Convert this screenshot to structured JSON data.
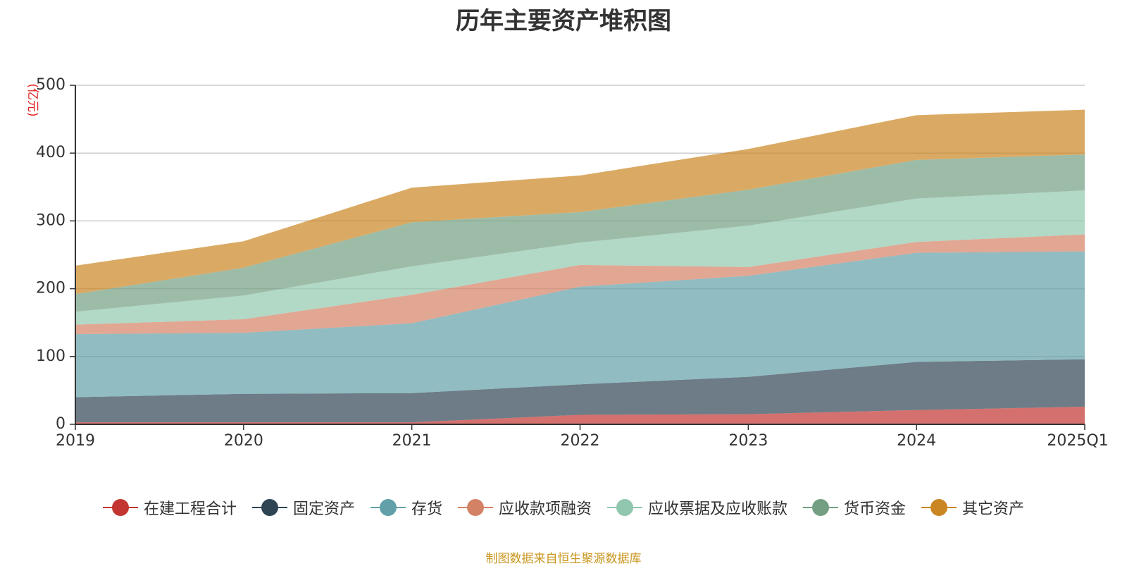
{
  "chart_data": {
    "type": "area",
    "stacked": true,
    "title": "历年主要资产堆积图",
    "unit_label": "(亿元)",
    "categories": [
      "2019",
      "2020",
      "2021",
      "2022",
      "2023",
      "2024",
      "2025Q1"
    ],
    "ylim": [
      0,
      500
    ],
    "yticks": [
      0,
      100,
      200,
      300,
      400,
      500
    ],
    "grid": true,
    "legend_position": "bottom",
    "series": [
      {
        "name": "在建工程合计",
        "color": "#c23531",
        "values": [
          3,
          3,
          3,
          14,
          15,
          21,
          26
        ]
      },
      {
        "name": "固定资产",
        "color": "#2f4554",
        "values": [
          37,
          42,
          43,
          45,
          55,
          71,
          70
        ]
      },
      {
        "name": "存货",
        "color": "#61a0a8",
        "values": [
          93,
          90,
          103,
          144,
          149,
          161,
          159
        ]
      },
      {
        "name": "应收款项融资",
        "color": "#d48265",
        "values": [
          14,
          20,
          42,
          32,
          13,
          16,
          25
        ]
      },
      {
        "name": "应收票据及应收账款",
        "color": "#91c7ae",
        "values": [
          19,
          35,
          42,
          33,
          61,
          64,
          65
        ]
      },
      {
        "name": "货币资金",
        "color": "#749f83",
        "values": [
          26,
          41,
          65,
          45,
          53,
          57,
          53
        ]
      },
      {
        "name": "其它资产",
        "color": "#ca8622",
        "values": [
          42,
          39,
          51,
          54,
          60,
          66,
          66
        ]
      }
    ]
  },
  "source_note": "制图数据来自恒生聚源数据库"
}
